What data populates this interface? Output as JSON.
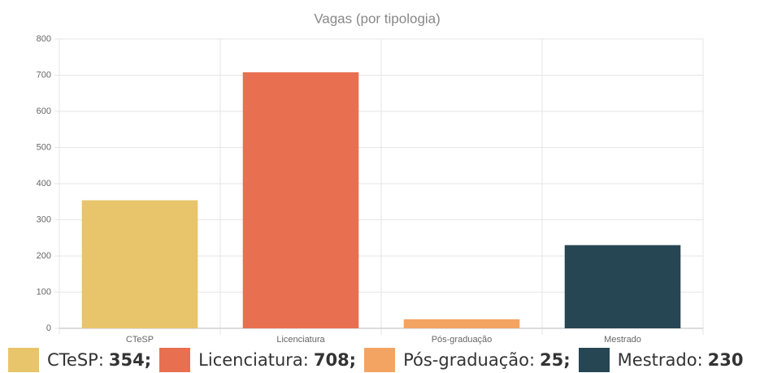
{
  "chart_data": {
    "type": "bar",
    "title": "Vagas (por tipologia)",
    "categories": [
      "CTeSP",
      "Licenciatura",
      "Pós-graduação",
      "Mestrado"
    ],
    "values": [
      354,
      708,
      25,
      230
    ],
    "colors": [
      "#e8c46a",
      "#e87050",
      "#f4a462",
      "#264653"
    ],
    "legend_labels": [
      "CTeSP:",
      "Licenciatura:",
      "Pós-graduação:",
      "Mestrado:"
    ],
    "value_labels": [
      "354;",
      "708;",
      "25;",
      "230"
    ],
    "legend": "bottom",
    "ylim": [
      0,
      800
    ],
    "yticks": [
      0,
      100,
      200,
      300,
      400,
      500,
      600,
      700,
      800
    ],
    "grid": true
  }
}
